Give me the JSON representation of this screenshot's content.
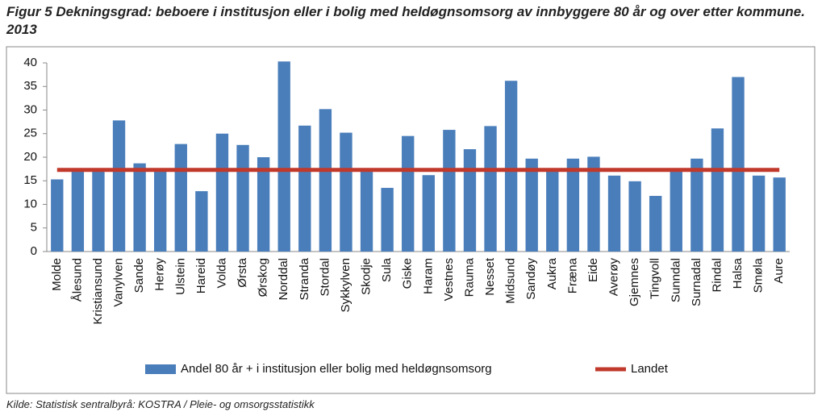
{
  "chart_data": {
    "type": "bar",
    "title": "Figur 5 Dekningsgrad: beboere i institusjon eller i bolig med heldøgnsomsorg av innbyggere 80 år og over etter kommune. 2013",
    "source": "Kilde: Statistisk sentralbyrå: KOSTRA / Pleie- og omsorgsstatistikk",
    "categories": [
      "Molde",
      "Ålesund",
      "Kristiansund",
      "Vanylven",
      "Sande",
      "Herøy",
      "Ulstein",
      "Hareid",
      "Volda",
      "Ørsta",
      "Ørskog",
      "Norddal",
      "Stranda",
      "Stordal",
      "Sykkylven",
      "Skodje",
      "Sula",
      "Giske",
      "Haram",
      "Vestnes",
      "Rauma",
      "Nesset",
      "Midsund",
      "Sandøy",
      "Aukra",
      "Fræna",
      "Eide",
      "Averøy",
      "Gjemnes",
      "Tingvoll",
      "Sunndal",
      "Surnadal",
      "Rindal",
      "Halsa",
      "Smøla",
      "Aure"
    ],
    "series": [
      {
        "name": "Andel 80 år + i institusjon eller bolig med heldøgnsomsorg",
        "type": "bar",
        "color": "#4a7ebb",
        "values": [
          15.3,
          17,
          17,
          27.8,
          18.7,
          17,
          22.8,
          12.8,
          25,
          22.6,
          20,
          40.3,
          26.7,
          30.2,
          25.2,
          17,
          13.5,
          24.5,
          16.2,
          25.8,
          21.7,
          26.6,
          36.2,
          19.7,
          17,
          19.7,
          20.1,
          16.1,
          14.9,
          11.8,
          17,
          19.7,
          26.1,
          37,
          16.1,
          15.7
        ]
      },
      {
        "name": "Landet",
        "type": "line",
        "color": "#c0392b",
        "values": [
          17.3,
          17.3,
          17.3,
          17.3,
          17.3,
          17.3,
          17.3,
          17.3,
          17.3,
          17.3,
          17.3,
          17.3,
          17.3,
          17.3,
          17.3,
          17.3,
          17.3,
          17.3,
          17.3,
          17.3,
          17.3,
          17.3,
          17.3,
          17.3,
          17.3,
          17.3,
          17.3,
          17.3,
          17.3,
          17.3,
          17.3,
          17.3,
          17.3,
          17.3,
          17.3,
          17.3
        ]
      }
    ],
    "ylim": [
      0,
      40
    ],
    "yticks": [
      0,
      5,
      10,
      15,
      20,
      25,
      30,
      35,
      40
    ],
    "grid": false
  }
}
